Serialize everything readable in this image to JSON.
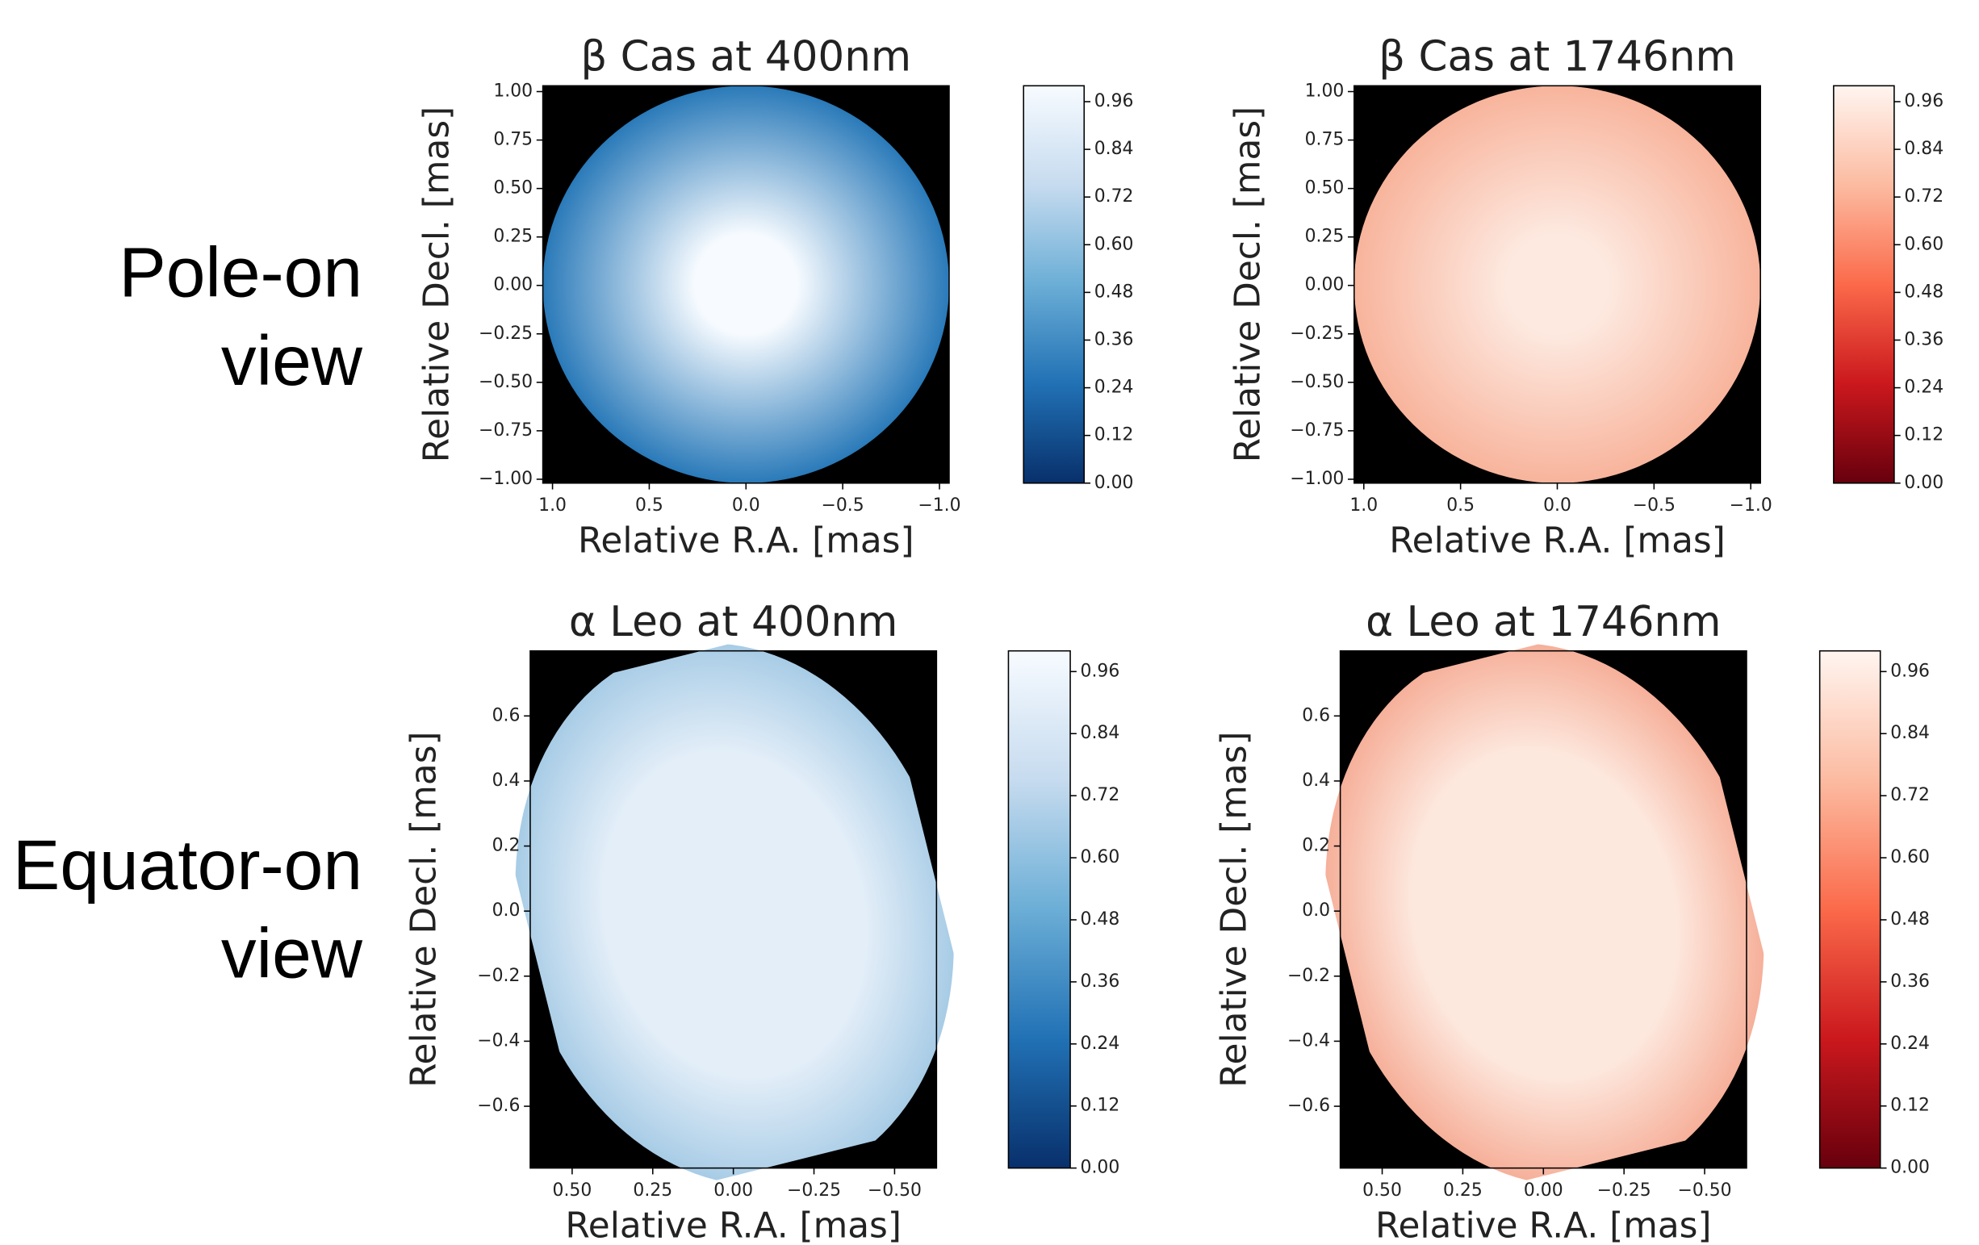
{
  "row_labels": [
    [
      "Pole-on",
      "view"
    ],
    [
      "Equator-on",
      "view"
    ]
  ],
  "chart_data": [
    {
      "type": "image",
      "title": "β Cas at 400nm",
      "xlabel": "Relative R.A. [mas]",
      "ylabel": "Relative Decl. [mas]",
      "xlim": [
        1.05,
        -1.05
      ],
      "ylim": [
        -1.02,
        1.03
      ],
      "xticks": [
        {
          "value": 1,
          "label": "1.0"
        },
        0.5,
        {
          "value": 0,
          "label": "0.0"
        },
        {
          "value": -0.5,
          "label": "−0.5"
        },
        {
          "value": -1,
          "label": "−1.0"
        }
      ],
      "yticks": [
        {
          "value": 1,
          "label": "1.00"
        },
        0.75,
        {
          "value": 0.5,
          "label": "0.50"
        },
        0.25,
        {
          "value": 0,
          "label": "0.00"
        },
        {
          "value": -0.25,
          "label": "−0.25"
        },
        {
          "value": -0.5,
          "label": "−0.50"
        },
        {
          "value": -0.75,
          "label": "−0.75"
        },
        {
          "value": -1,
          "label": "−1.00"
        }
      ],
      "colormap": "Blues",
      "colorbar": {
        "lim": [
          0,
          1.0
        ],
        "ticks": [
          {
            "value": 0,
            "label": "0.00"
          },
          0.12,
          0.24,
          0.36,
          0.48,
          {
            "value": 0.6,
            "label": "0.60"
          },
          0.72,
          0.84,
          0.96
        ]
      }
    },
    {
      "type": "image",
      "title": "β Cas at 1746nm",
      "xlabel": "Relative R.A. [mas]",
      "ylabel": "Relative Decl. [mas]",
      "xlim": [
        1.05,
        -1.05
      ],
      "ylim": [
        -1.02,
        1.03
      ],
      "xticks": [
        {
          "value": 1,
          "label": "1.0"
        },
        0.5,
        {
          "value": 0,
          "label": "0.0"
        },
        {
          "value": -0.5,
          "label": "−0.5"
        },
        {
          "value": -1,
          "label": "−1.0"
        }
      ],
      "yticks": [
        {
          "value": 1,
          "label": "1.00"
        },
        0.75,
        {
          "value": 0.5,
          "label": "0.50"
        },
        0.25,
        {
          "value": 0,
          "label": "0.00"
        },
        {
          "value": -0.25,
          "label": "−0.25"
        },
        {
          "value": -0.5,
          "label": "−0.50"
        },
        {
          "value": -0.75,
          "label": "−0.75"
        },
        {
          "value": -1,
          "label": "−1.00"
        }
      ],
      "colormap": "Reds",
      "colorbar": {
        "lim": [
          0,
          1.0
        ],
        "ticks": [
          {
            "value": 0,
            "label": "0.00"
          },
          0.12,
          0.24,
          0.36,
          0.48,
          {
            "value": 0.6,
            "label": "0.60"
          },
          0.72,
          0.84,
          0.96
        ]
      }
    },
    {
      "type": "image",
      "title": "α Leo at 400nm",
      "xlabel": "Relative R.A. [mas]",
      "ylabel": "Relative Decl. [mas]",
      "xlim": [
        0.63,
        -0.63
      ],
      "ylim": [
        -0.79,
        0.8
      ],
      "xticks": [
        {
          "value": 0.5,
          "label": "0.50"
        },
        0.25,
        {
          "value": 0,
          "label": "0.00"
        },
        {
          "value": -0.25,
          "label": "−0.25"
        },
        {
          "value": -0.5,
          "label": "−0.50"
        }
      ],
      "yticks": [
        0.6,
        0.4,
        0.2,
        {
          "value": 0,
          "label": "0.0"
        },
        {
          "value": -0.2,
          "label": "−0.2"
        },
        {
          "value": -0.4,
          "label": "−0.4"
        },
        {
          "value": -0.6,
          "label": "−0.6"
        }
      ],
      "colormap": "Blues",
      "colorbar": {
        "lim": [
          0,
          1.0
        ],
        "ticks": [
          {
            "value": 0,
            "label": "0.00"
          },
          0.12,
          0.24,
          0.36,
          0.48,
          {
            "value": 0.6,
            "label": "0.60"
          },
          0.72,
          0.84,
          0.96
        ]
      }
    },
    {
      "type": "image",
      "title": "α Leo at 1746nm",
      "xlabel": "Relative R.A. [mas]",
      "ylabel": "Relative Decl. [mas]",
      "xlim": [
        0.63,
        -0.63
      ],
      "ylim": [
        -0.79,
        0.8
      ],
      "xticks": [
        {
          "value": 0.5,
          "label": "0.50"
        },
        0.25,
        {
          "value": 0,
          "label": "0.00"
        },
        {
          "value": -0.25,
          "label": "−0.25"
        },
        {
          "value": -0.5,
          "label": "−0.50"
        }
      ],
      "yticks": [
        0.6,
        0.4,
        0.2,
        {
          "value": 0,
          "label": "0.0"
        },
        {
          "value": -0.2,
          "label": "−0.2"
        },
        {
          "value": -0.4,
          "label": "−0.4"
        },
        {
          "value": -0.6,
          "label": "−0.6"
        }
      ],
      "colormap": "Reds",
      "colorbar": {
        "lim": [
          0,
          1.0
        ],
        "ticks": [
          {
            "value": 0,
            "label": "0.00"
          },
          0.12,
          0.24,
          0.36,
          0.48,
          {
            "value": 0.6,
            "label": "0.60"
          },
          0.72,
          0.84,
          0.96
        ]
      }
    }
  ]
}
